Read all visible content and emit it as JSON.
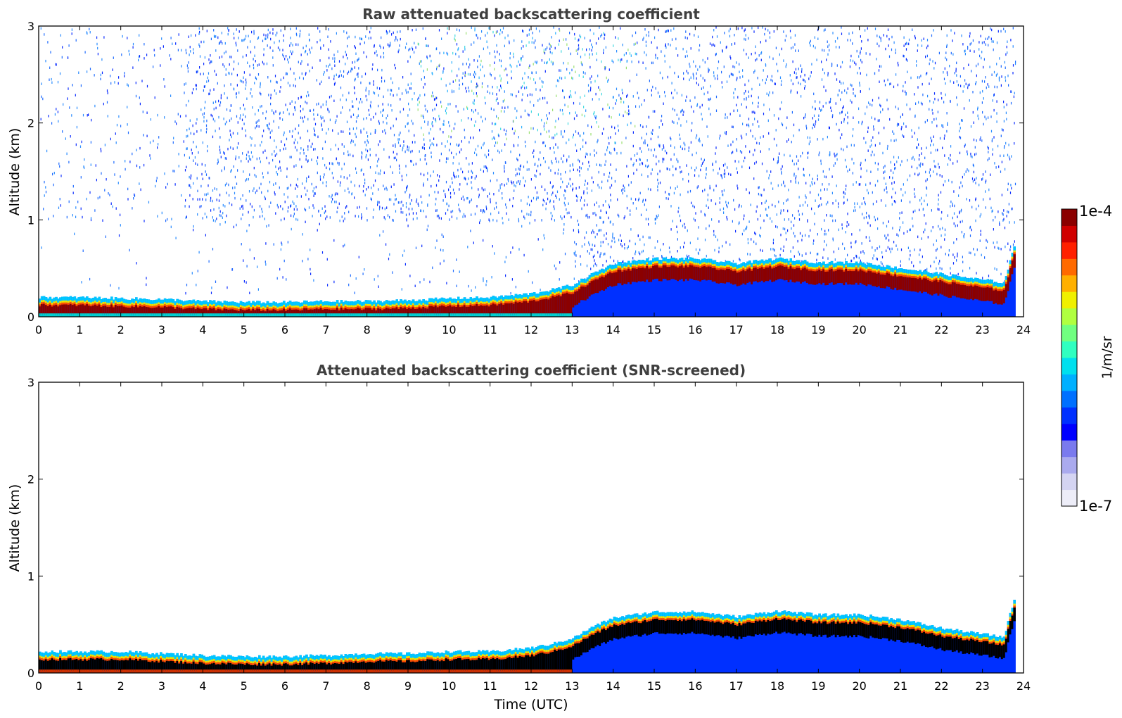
{
  "chart_data": [
    {
      "type": "heatmap",
      "title": "Raw attenuated backscattering coefficient",
      "xlabel": "",
      "ylabel": "Altitude (km)",
      "xlim": [
        0,
        24
      ],
      "ylim": [
        0,
        3
      ],
      "xticks": [
        "0",
        "1",
        "2",
        "3",
        "4",
        "5",
        "6",
        "7",
        "8",
        "9",
        "10",
        "11",
        "12",
        "13",
        "14",
        "15",
        "16",
        "17",
        "18",
        "19",
        "20",
        "21",
        "22",
        "23",
        "24"
      ],
      "yticks": [
        "0",
        "1",
        "2",
        "3"
      ],
      "layer_top_km": [
        [
          0,
          0.2
        ],
        [
          1,
          0.2
        ],
        [
          2,
          0.19
        ],
        [
          3,
          0.18
        ],
        [
          4,
          0.16
        ],
        [
          5,
          0.15
        ],
        [
          6,
          0.15
        ],
        [
          7,
          0.16
        ],
        [
          8,
          0.16
        ],
        [
          9,
          0.17
        ],
        [
          10,
          0.19
        ],
        [
          11,
          0.2
        ],
        [
          12,
          0.24
        ],
        [
          12.5,
          0.28
        ],
        [
          13,
          0.33
        ],
        [
          13.5,
          0.45
        ],
        [
          14,
          0.55
        ],
        [
          15,
          0.6
        ],
        [
          16,
          0.6
        ],
        [
          17,
          0.55
        ],
        [
          18,
          0.6
        ],
        [
          19,
          0.56
        ],
        [
          20,
          0.56
        ],
        [
          21,
          0.5
        ],
        [
          22,
          0.44
        ],
        [
          23,
          0.38
        ],
        [
          23.5,
          0.35
        ],
        [
          23.75,
          0.72
        ]
      ]
    },
    {
      "type": "heatmap",
      "title": "Attenuated backscattering coefficient (SNR-screened)",
      "xlabel": "Time (UTC)",
      "ylabel": "Altitude (km)",
      "xlim": [
        0,
        24
      ],
      "ylim": [
        0,
        3
      ],
      "xticks": [
        "0",
        "1",
        "2",
        "3",
        "4",
        "5",
        "6",
        "7",
        "8",
        "9",
        "10",
        "11",
        "12",
        "13",
        "14",
        "15",
        "16",
        "17",
        "18",
        "19",
        "20",
        "21",
        "22",
        "23",
        "24"
      ],
      "yticks": [
        "0",
        "1",
        "2",
        "3"
      ],
      "layer_top_km": [
        [
          0,
          0.22
        ],
        [
          1,
          0.22
        ],
        [
          2,
          0.22
        ],
        [
          3,
          0.2
        ],
        [
          4,
          0.18
        ],
        [
          5,
          0.17
        ],
        [
          6,
          0.17
        ],
        [
          7,
          0.18
        ],
        [
          8,
          0.2
        ],
        [
          9,
          0.2
        ],
        [
          10,
          0.22
        ],
        [
          11,
          0.22
        ],
        [
          12,
          0.26
        ],
        [
          12.5,
          0.3
        ],
        [
          13,
          0.36
        ],
        [
          13.5,
          0.48
        ],
        [
          14,
          0.57
        ],
        [
          15,
          0.63
        ],
        [
          16,
          0.63
        ],
        [
          17,
          0.58
        ],
        [
          18,
          0.64
        ],
        [
          19,
          0.6
        ],
        [
          20,
          0.6
        ],
        [
          21,
          0.55
        ],
        [
          22,
          0.46
        ],
        [
          23,
          0.4
        ],
        [
          23.5,
          0.37
        ],
        [
          23.75,
          0.76
        ]
      ]
    }
  ],
  "colorbar": {
    "label": "1/m/sr",
    "min_label": "1e-7",
    "max_label": "1e-4",
    "scale": "log",
    "colormap": [
      "#ededf8",
      "#d4d4f2",
      "#aaaaee",
      "#7a7aee",
      "#0000ff",
      "#0030ff",
      "#0070ff",
      "#00b0ff",
      "#00e0ee",
      "#30ffc0",
      "#70ff80",
      "#b0ff40",
      "#f0f000",
      "#ffb000",
      "#ff6a00",
      "#ff2000",
      "#d00000",
      "#8b0000"
    ]
  },
  "colors": {
    "background": "#ffffff",
    "axis": "#000000",
    "title": "#3f3f3f",
    "layer_core": "#8b0000",
    "layer_core_screened": "#000000",
    "boundary_layer": "#0030ff",
    "noise": "#1a5cff"
  }
}
